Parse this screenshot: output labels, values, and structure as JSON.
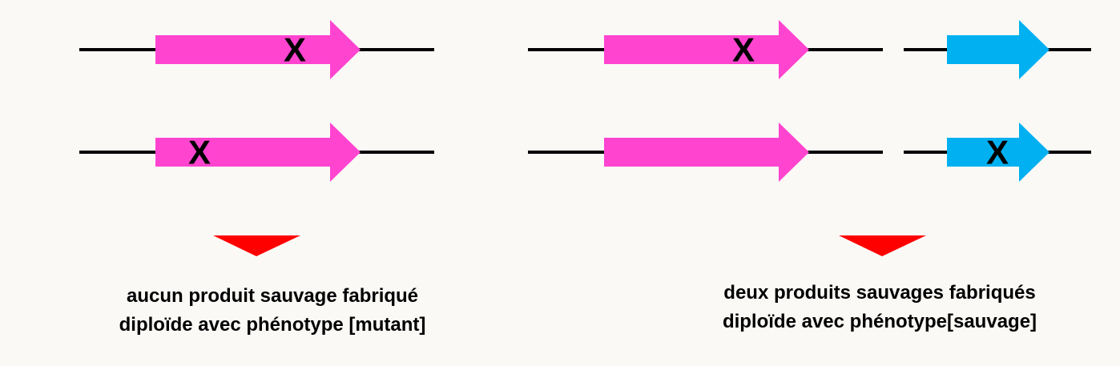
{
  "marks": {
    "mutation": "X"
  },
  "colors": {
    "gene_a": "#ff44d0",
    "gene_b": "#00b0f0",
    "chromosome": "#000000",
    "result_arrow": "#ff0000",
    "mutation": "#000000"
  },
  "left_panel": {
    "caption_line1": "aucun produit sauvage fabriqué",
    "caption_line2": "diploïde avec phénotype [mutant]"
  },
  "right_panel": {
    "caption_line1": "deux produits sauvages fabriqués",
    "caption_line2": "diploïde avec phénotype[sauvage]"
  }
}
